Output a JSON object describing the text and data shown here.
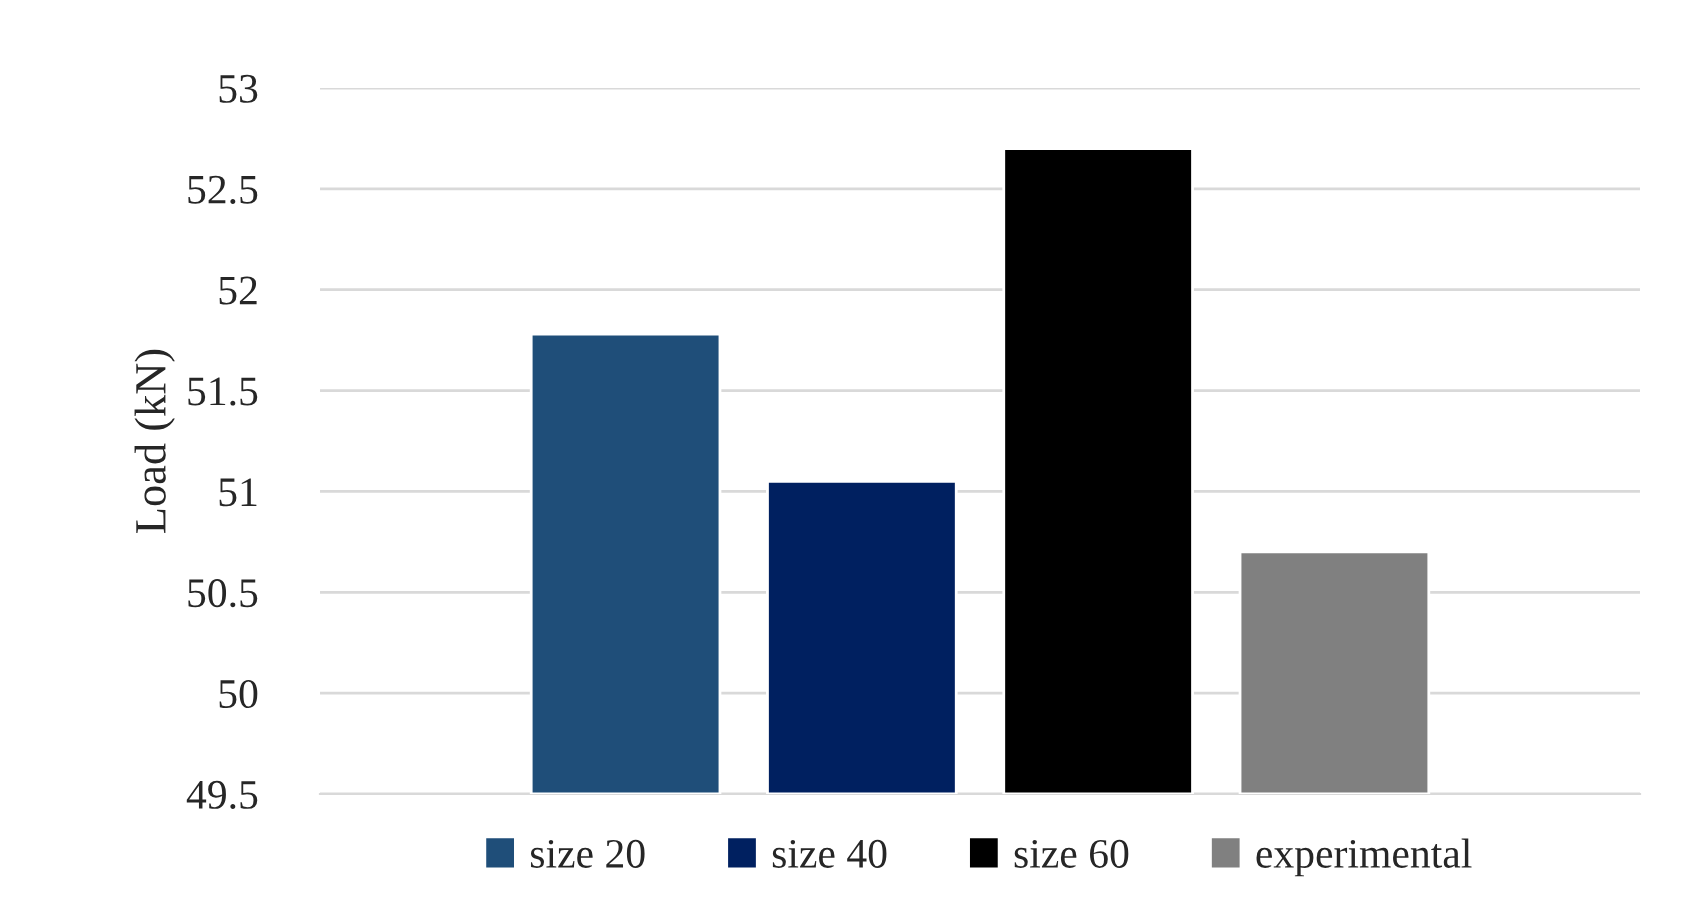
{
  "chart_data": {
    "type": "bar",
    "ylabel": "Load (kN)",
    "categories": [
      null
    ],
    "series": [
      {
        "name": "size 20",
        "color": "#1f4e79",
        "values": [
          51.78
        ]
      },
      {
        "name": "size 40",
        "color": "#002060",
        "values": [
          51.05
        ]
      },
      {
        "name": "size 60",
        "color": "#000000",
        "values": [
          52.7
        ]
      },
      {
        "name": "experimental",
        "color": "#808080",
        "values": [
          50.7
        ]
      }
    ],
    "ylim": [
      49.5,
      53
    ],
    "yticks": [
      49.5,
      50,
      50.5,
      51,
      51.5,
      52,
      52.5,
      53
    ],
    "grid": "y",
    "legend": "bottom"
  }
}
